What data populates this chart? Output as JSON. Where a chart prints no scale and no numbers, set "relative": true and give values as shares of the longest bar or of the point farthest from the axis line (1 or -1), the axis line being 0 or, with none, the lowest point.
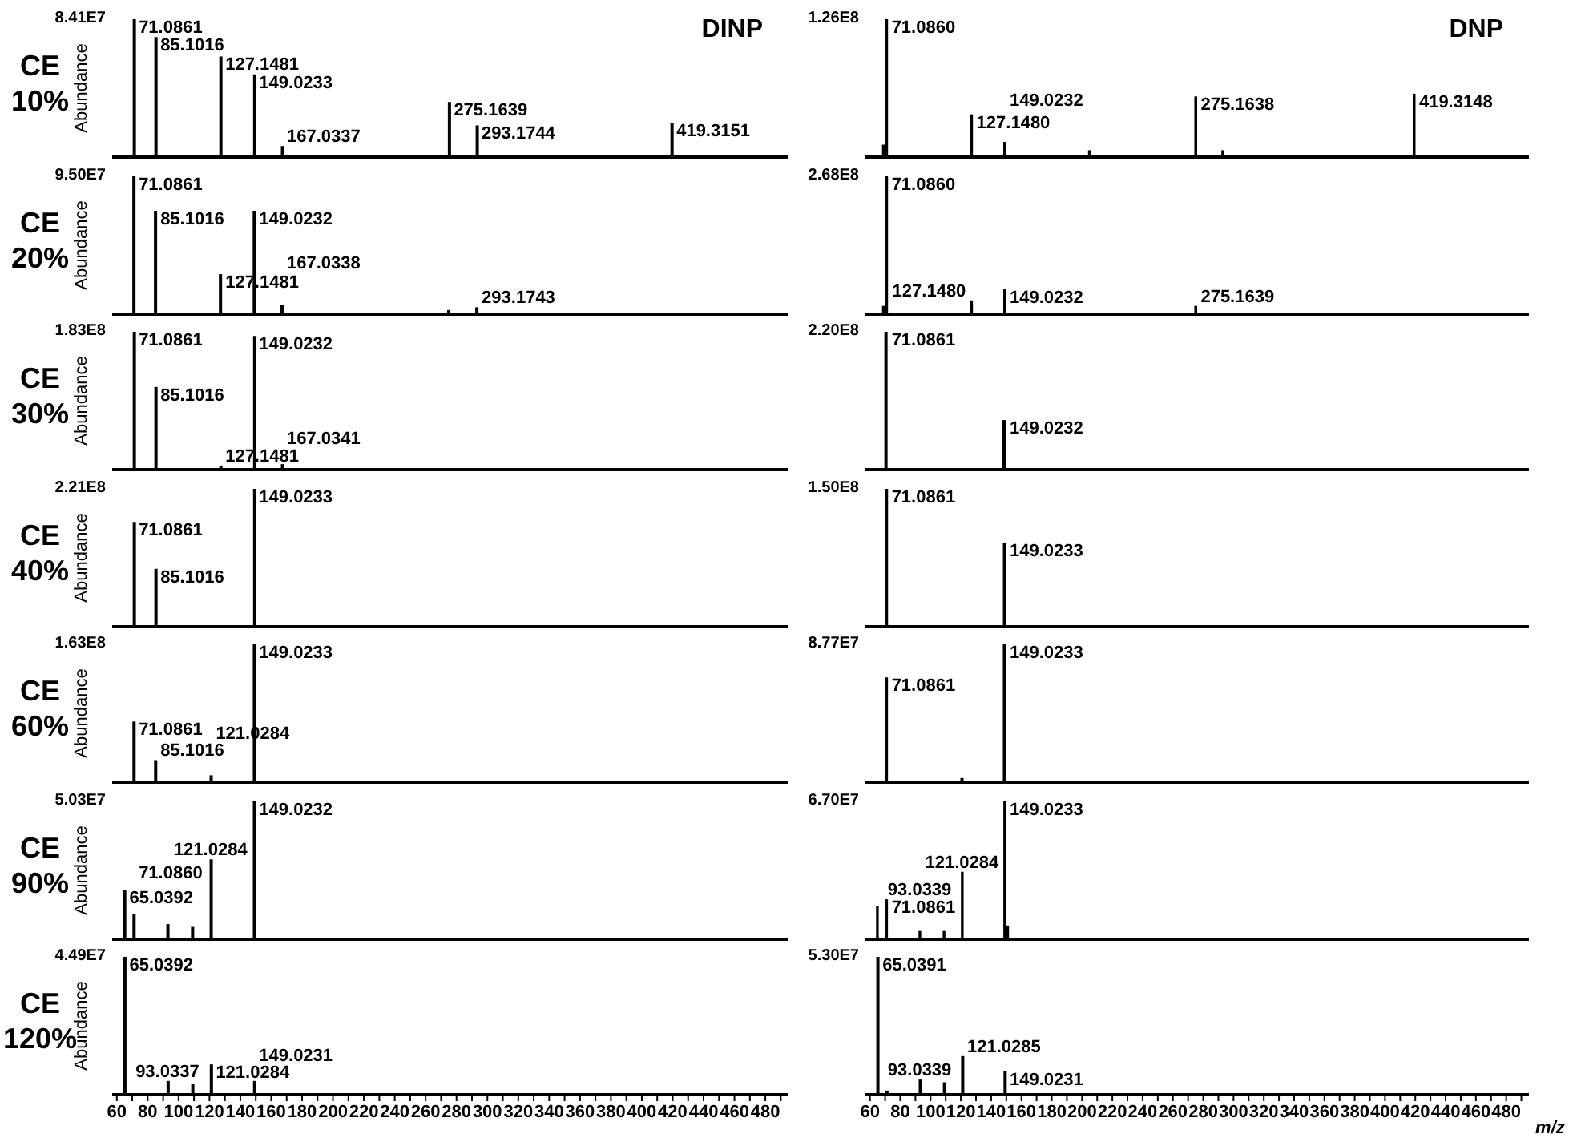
{
  "chart_data": [
    {
      "type": "bar",
      "title": "DINP",
      "subtitle": "CE 10%",
      "ylabel": "Abundance",
      "relative": true,
      "color": "#000000",
      "xlim": [
        57,
        495
      ],
      "tick_labels": false,
      "x": [
        71.0861,
        85.1016,
        127.1481,
        149.0233,
        167.0337,
        275.1639,
        293.1744,
        419.3151
      ],
      "values": [
        1.0,
        0.87,
        0.73,
        0.6,
        0.08,
        0.4,
        0.23,
        0.25
      ],
      "annotations": [
        "8.41E7",
        {
          "text": "71.0861",
          "x": 71.0861,
          "y": 1.0
        },
        {
          "text": "85.1016",
          "x": 85.1016,
          "y": 0.87
        },
        {
          "text": "127.1481",
          "x": 127.1481,
          "y": 0.73
        },
        {
          "text": "149.0233",
          "x": 149.0233,
          "y": 0.6
        },
        {
          "text": "167.0337",
          "x": 167.0337,
          "y": 0.08
        },
        {
          "text": "275.1639",
          "x": 275.1639,
          "y": 0.4
        },
        {
          "text": "293.1744",
          "x": 293.1744,
          "y": 0.23
        },
        {
          "text": "419.3151",
          "x": 419.3151,
          "y": 0.25
        }
      ]
    },
    {
      "type": "bar",
      "title": "DNP",
      "relative": true,
      "color": "#000000",
      "xlim": [
        57,
        495
      ],
      "tick_labels": false,
      "x": [
        69,
        71.086,
        99,
        127.148,
        149.0232,
        205,
        275.1638,
        293,
        419.3148
      ],
      "values": [
        0.09,
        1.0,
        0.01,
        0.31,
        0.11,
        0.05,
        0.44,
        0.05,
        0.46
      ],
      "annotations": [
        "1.26E8",
        {
          "text": "71.0860",
          "x": 71.086,
          "y": 1.0
        },
        {
          "text": "127.1480",
          "x": 127.148,
          "y": 0.31
        },
        {
          "text": "149.0232",
          "x": 149.0232,
          "y": 0.11
        },
        {
          "text": "275.1638",
          "x": 275.1638,
          "y": 0.44
        },
        {
          "text": "419.3148",
          "x": 419.3148,
          "y": 0.46
        }
      ]
    },
    {
      "type": "bar",
      "subtitle": "CE 20%",
      "ylabel": "Abundance",
      "relative": true,
      "color": "#000000",
      "xlim": [
        57,
        495
      ],
      "tick_labels": false,
      "x": [
        69,
        71.0861,
        85.1016,
        127.1481,
        149.0232,
        167.0338,
        275,
        293.1743
      ],
      "values": [
        0.01,
        1.0,
        0.75,
        0.29,
        0.75,
        0.07,
        0.03,
        0.05
      ],
      "annotations": [
        "9.50E7",
        {
          "text": "71.0861",
          "x": 71.0861,
          "y": 1.0
        },
        {
          "text": "85.1016",
          "x": 85.1016,
          "y": 0.75
        },
        {
          "text": "127.1481",
          "x": 127.1481,
          "y": 0.29
        },
        {
          "text": "149.0232",
          "x": 149.0232,
          "y": 0.75
        },
        {
          "text": "167.0338",
          "x": 167.0338,
          "y": 0.07
        },
        {
          "text": "293.1743",
          "x": 293.1743,
          "y": 0.05
        }
      ]
    },
    {
      "type": "bar",
      "relative": true,
      "color": "#000000",
      "xlim": [
        57,
        495
      ],
      "tick_labels": false,
      "x": [
        69,
        71.086,
        85,
        127.148,
        149.0232,
        205,
        275.1639
      ],
      "values": [
        0.06,
        1.0,
        0.01,
        0.1,
        0.18,
        0.01,
        0.06
      ],
      "annotations": [
        "2.68E8",
        {
          "text": "71.0860",
          "x": 71.086,
          "y": 1.0
        },
        {
          "text": "127.1480",
          "x": 127.148,
          "y": 0.1
        },
        {
          "text": "149.0232",
          "x": 149.0232,
          "y": 0.18
        },
        {
          "text": "275.1639",
          "x": 275.1639,
          "y": 0.06
        }
      ]
    },
    {
      "type": "bar",
      "subtitle": "CE 30%",
      "ylabel": "Abundance",
      "relative": true,
      "color": "#000000",
      "xlim": [
        57,
        495
      ],
      "tick_labels": false,
      "x": [
        71.0861,
        85.1016,
        127.1481,
        149.0232,
        167.0341
      ],
      "values": [
        1.0,
        0.6,
        0.03,
        0.97,
        0.04
      ],
      "annotations": [
        "1.83E8",
        {
          "text": "71.0861",
          "x": 71.0861,
          "y": 1.0
        },
        {
          "text": "85.1016",
          "x": 85.1016,
          "y": 0.6
        },
        {
          "text": "127.1481",
          "x": 127.1481,
          "y": 0.03
        },
        {
          "text": "149.0232",
          "x": 149.0232,
          "y": 0.97
        },
        {
          "text": "167.0341",
          "x": 167.0341,
          "y": 0.04
        }
      ]
    },
    {
      "type": "bar",
      "relative": true,
      "color": "#000000",
      "xlim": [
        57,
        495
      ],
      "tick_labels": false,
      "x": [
        71.0861,
        127,
        149.0232,
        167
      ],
      "values": [
        1.0,
        0.01,
        0.36,
        0.01
      ],
      "annotations": [
        "2.20E8",
        {
          "text": "71.0861",
          "x": 71.0861,
          "y": 1.0
        },
        {
          "text": "149.0232",
          "x": 149.0232,
          "y": 0.36
        }
      ]
    },
    {
      "type": "bar",
      "subtitle": "CE 40%",
      "ylabel": "Abundance",
      "relative": true,
      "color": "#000000",
      "xlim": [
        57,
        495
      ],
      "tick_labels": false,
      "x": [
        71.0861,
        85.1016,
        149.0233,
        167
      ],
      "values": [
        0.76,
        0.42,
        1.0,
        0.01
      ],
      "annotations": [
        "2.21E8",
        {
          "text": "71.0861",
          "x": 71.0861,
          "y": 0.76
        },
        {
          "text": "85.1016",
          "x": 85.1016,
          "y": 0.42
        },
        {
          "text": "149.0233",
          "x": 149.0233,
          "y": 1.0
        }
      ]
    },
    {
      "type": "bar",
      "relative": true,
      "color": "#000000",
      "xlim": [
        57,
        495
      ],
      "tick_labels": false,
      "x": [
        71.0861,
        99,
        149.0233,
        299
      ],
      "values": [
        1.0,
        0.01,
        0.61,
        0.01
      ],
      "annotations": [
        "1.50E8",
        {
          "text": "71.0861",
          "x": 71.0861,
          "y": 1.0
        },
        {
          "text": "149.0233",
          "x": 149.0233,
          "y": 0.61
        }
      ]
    },
    {
      "type": "bar",
      "subtitle": "CE 60%",
      "ylabel": "Abundance",
      "relative": true,
      "color": "#000000",
      "xlim": [
        57,
        495
      ],
      "tick_labels": false,
      "x": [
        65,
        71.0861,
        85.1016,
        121.0284,
        149.0233
      ],
      "values": [
        0.01,
        0.44,
        0.16,
        0.05,
        1.0
      ],
      "annotations": [
        "1.63E8",
        {
          "text": "71.0861",
          "x": 71.0861,
          "y": 0.44
        },
        {
          "text": "85.1016",
          "x": 85.1016,
          "y": 0.16
        },
        {
          "text": "121.0284",
          "x": 121.0284,
          "y": 0.05
        },
        {
          "text": "149.0233",
          "x": 149.0233,
          "y": 1.0
        }
      ]
    },
    {
      "type": "bar",
      "relative": true,
      "color": "#000000",
      "xlim": [
        57,
        495
      ],
      "tick_labels": false,
      "x": [
        71.0861,
        121,
        149.0233,
        299
      ],
      "values": [
        0.76,
        0.03,
        1.0,
        0.01
      ],
      "annotations": [
        "8.77E7",
        {
          "text": "71.0861",
          "x": 71.0861,
          "y": 0.76
        },
        {
          "text": "149.0233",
          "x": 149.0233,
          "y": 1.0
        }
      ]
    },
    {
      "type": "bar",
      "subtitle": "CE 90%",
      "ylabel": "Abundance",
      "relative": true,
      "color": "#000000",
      "xlim": [
        57,
        495
      ],
      "tick_labels": false,
      "x": [
        65.0392,
        71.086,
        93,
        109,
        121.0284,
        149.0232
      ],
      "values": [
        0.36,
        0.18,
        0.11,
        0.09,
        0.58,
        1.0
      ],
      "annotations": [
        "5.03E7",
        {
          "text": "65.0392",
          "x": 65.0392,
          "y": 0.36
        },
        {
          "text": "71.0860",
          "x": 71.086,
          "y": 0.18
        },
        {
          "text": "121.0284",
          "x": 121.0284,
          "y": 0.58
        },
        {
          "text": "149.0232",
          "x": 149.0232,
          "y": 1.0
        }
      ]
    },
    {
      "type": "bar",
      "relative": true,
      "color": "#000000",
      "xlim": [
        57,
        495
      ],
      "tick_labels": false,
      "x": [
        65,
        71.0861,
        93.0339,
        109,
        121.0284,
        149.0233,
        151
      ],
      "values": [
        0.24,
        0.29,
        0.06,
        0.06,
        0.49,
        1.0,
        0.1
      ],
      "annotations": [
        "6.70E7",
        {
          "text": "71.0861",
          "x": 71.0861,
          "y": 0.29
        },
        {
          "text": "93.0339",
          "x": 93.0339,
          "y": 0.06
        },
        {
          "text": "121.0284",
          "x": 121.0284,
          "y": 0.49
        },
        {
          "text": "149.0233",
          "x": 149.0233,
          "y": 1.0
        }
      ]
    },
    {
      "type": "bar",
      "subtitle": "CE 120%",
      "ylabel": "Abundance",
      "relative": true,
      "color": "#000000",
      "xlim": [
        57,
        495
      ],
      "tick_labels": "x",
      "x": [
        65.0392,
        93.0337,
        109,
        121.0284,
        149.0231
      ],
      "values": [
        1.0,
        0.1,
        0.08,
        0.22,
        0.1
      ],
      "xticks": [
        60,
        {
          "value": 70,
          "label": null
        },
        80,
        {
          "value": 90,
          "label": null
        },
        100,
        {
          "value": 110,
          "label": null
        },
        120,
        {
          "value": 130,
          "label": null
        },
        140,
        {
          "value": 150,
          "label": null
        },
        160,
        {
          "value": 170,
          "label": null
        },
        180,
        {
          "value": 190,
          "label": null
        },
        200,
        {
          "value": 210,
          "label": null
        },
        220,
        {
          "value": 230,
          "label": null
        },
        240,
        {
          "value": 250,
          "label": null
        },
        260,
        {
          "value": 270,
          "label": null
        },
        280,
        {
          "value": 290,
          "label": null
        },
        300,
        {
          "value": 310,
          "label": null
        },
        320,
        {
          "value": 330,
          "label": null
        },
        340,
        {
          "value": 350,
          "label": null
        },
        360,
        {
          "value": 370,
          "label": null
        },
        380,
        {
          "value": 390,
          "label": null
        },
        400,
        {
          "value": 410,
          "label": null
        },
        420,
        {
          "value": 430,
          "label": null
        },
        440,
        {
          "value": 450,
          "label": null
        },
        460,
        {
          "value": 470,
          "label": null
        },
        480,
        {
          "value": 490,
          "label": null
        }
      ],
      "annotations": [
        "4.49E7",
        {
          "text": "65.0392",
          "x": 65.0392,
          "y": 1.0
        },
        {
          "text": "93.0337",
          "x": 93.0337,
          "y": 0.1
        },
        {
          "text": "121.0284",
          "x": 121.0284,
          "y": 0.22
        },
        {
          "text": "149.0231",
          "x": 149.0231,
          "y": 0.1
        }
      ]
    },
    {
      "type": "bar",
      "xlabel": "m/z",
      "relative": true,
      "color": "#000000",
      "xlim": [
        57,
        495
      ],
      "tick_labels": "x",
      "x": [
        65.0391,
        71,
        93.0339,
        109,
        121.0285,
        149.0231,
        300
      ],
      "values": [
        1.0,
        0.03,
        0.11,
        0.09,
        0.28,
        0.17,
        0.01
      ],
      "xticks": [
        60,
        {
          "value": 70,
          "label": null
        },
        80,
        {
          "value": 90,
          "label": null
        },
        100,
        {
          "value": 110,
          "label": null
        },
        120,
        {
          "value": 130,
          "label": null
        },
        140,
        {
          "value": 150,
          "label": null
        },
        160,
        {
          "value": 170,
          "label": null
        },
        180,
        {
          "value": 190,
          "label": null
        },
        200,
        {
          "value": 210,
          "label": null
        },
        220,
        {
          "value": 230,
          "label": null
        },
        240,
        {
          "value": 250,
          "label": null
        },
        260,
        {
          "value": 270,
          "label": null
        },
        280,
        {
          "value": 290,
          "label": null
        },
        300,
        {
          "value": 310,
          "label": null
        },
        320,
        {
          "value": 330,
          "label": null
        },
        340,
        {
          "value": 350,
          "label": null
        },
        360,
        {
          "value": 370,
          "label": null
        },
        380,
        {
          "value": 390,
          "label": null
        },
        400,
        {
          "value": 410,
          "label": null
        },
        420,
        {
          "value": 430,
          "label": null
        },
        440,
        {
          "value": 450,
          "label": null
        },
        460,
        {
          "value": 470,
          "label": null
        },
        480,
        {
          "value": 490,
          "label": null
        }
      ],
      "annotations": [
        "5.30E7",
        {
          "text": "65.0391",
          "x": 65.0391,
          "y": 1.0
        },
        {
          "text": "93.0339",
          "x": 93.0339,
          "y": 0.11
        },
        {
          "text": "121.0285",
          "x": 121.0285,
          "y": 0.28
        },
        {
          "text": "149.0231",
          "x": 149.0231,
          "y": 0.17
        }
      ]
    }
  ]
}
